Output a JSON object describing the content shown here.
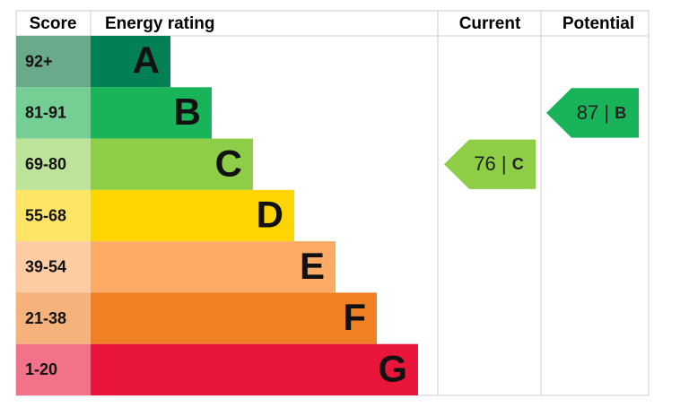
{
  "headers": {
    "score": "Score",
    "rating": "Energy rating",
    "current": "Current",
    "potential": "Potential"
  },
  "rows": [
    {
      "score": "92+",
      "letter": "A",
      "color": "#008054",
      "light": "#6aa98a"
    },
    {
      "score": "81-91",
      "letter": "B",
      "color": "#19b459",
      "light": "#75cf95"
    },
    {
      "score": "69-80",
      "letter": "C",
      "color": "#8dce46",
      "light": "#bde39a"
    },
    {
      "score": "55-68",
      "letter": "D",
      "color": "#ffd500",
      "light": "#ffe566"
    },
    {
      "score": "39-54",
      "letter": "E",
      "color": "#fcaa65",
      "light": "#fdcca3"
    },
    {
      "score": "21-38",
      "letter": "F",
      "color": "#ef8023",
      "light": "#f5b37b"
    },
    {
      "score": "1-20",
      "letter": "G",
      "color": "#e9153b",
      "light": "#f27389"
    }
  ],
  "current": {
    "value": 76,
    "separator": "|",
    "letter": "C"
  },
  "potential": {
    "value": 87,
    "separator": "|",
    "letter": "B"
  }
}
